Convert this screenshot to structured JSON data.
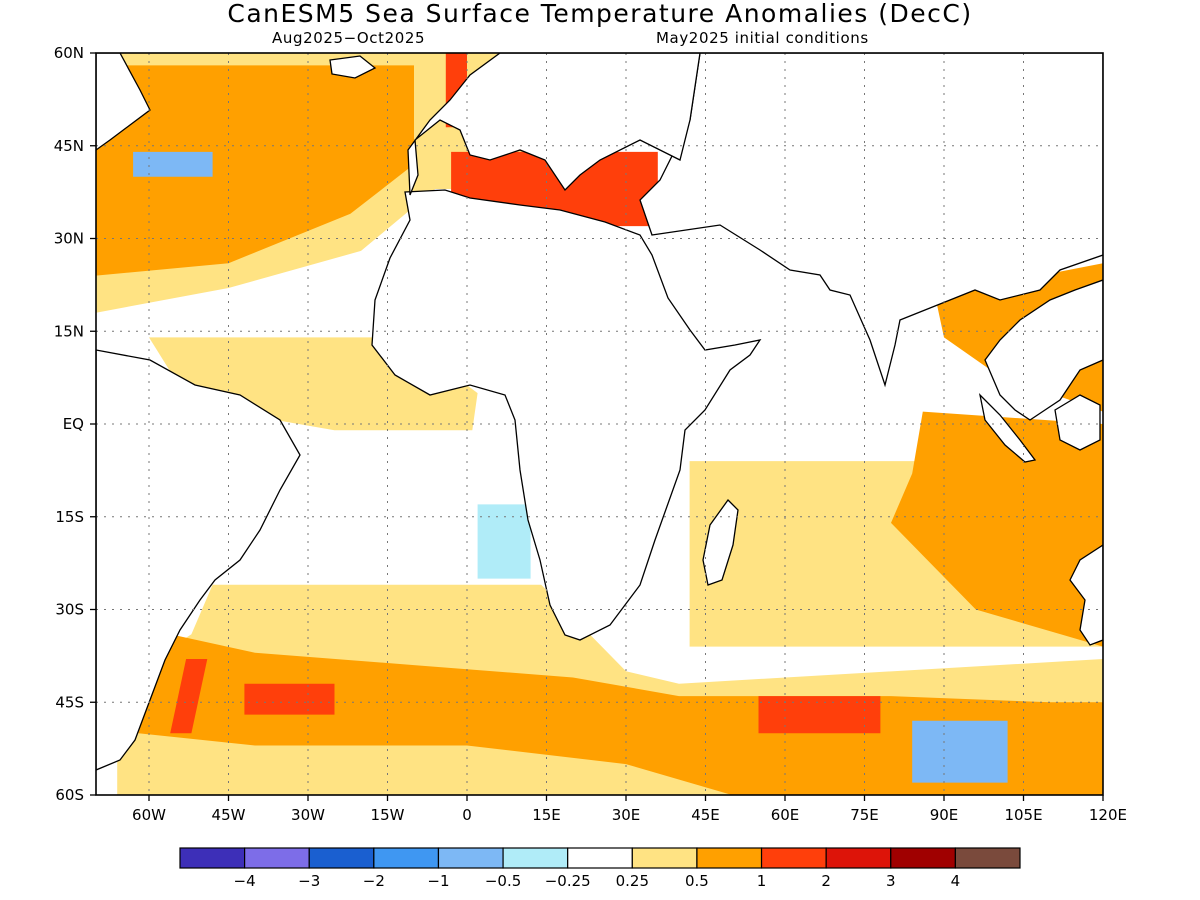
{
  "title": "CanESM5 Sea Surface Temperature Anomalies (DecC)",
  "valid_period": "Aug2025−Oct2025",
  "initial_conditions": "May2025 initial conditions",
  "map": {
    "region": "Atlantic / Indian Ocean",
    "lon_range": [
      -70,
      120
    ],
    "lat_range": [
      -60,
      60
    ],
    "lat_ticks": [
      {
        "value": 60,
        "label": "60N"
      },
      {
        "value": 45,
        "label": "45N"
      },
      {
        "value": 30,
        "label": "30N"
      },
      {
        "value": 15,
        "label": "15N"
      },
      {
        "value": 0,
        "label": "EQ"
      },
      {
        "value": -15,
        "label": "15S"
      },
      {
        "value": -30,
        "label": "30S"
      },
      {
        "value": -45,
        "label": "45S"
      },
      {
        "value": -60,
        "label": "60S"
      }
    ],
    "lon_ticks": [
      {
        "value": -60,
        "label": "60W"
      },
      {
        "value": -45,
        "label": "45W"
      },
      {
        "value": -30,
        "label": "30W"
      },
      {
        "value": -15,
        "label": "15W"
      },
      {
        "value": 0,
        "label": "0"
      },
      {
        "value": 15,
        "label": "15E"
      },
      {
        "value": 30,
        "label": "30E"
      },
      {
        "value": 45,
        "label": "45E"
      },
      {
        "value": 60,
        "label": "60E"
      },
      {
        "value": 75,
        "label": "75E"
      },
      {
        "value": 90,
        "label": "90E"
      },
      {
        "value": 105,
        "label": "105E"
      },
      {
        "value": 120,
        "label": "120E"
      }
    ],
    "grid": true
  },
  "colorbar": {
    "colors": [
      "#3d2fb8",
      "#7d6de8",
      "#1a5fd0",
      "#3f97f2",
      "#7db8f5",
      "#b0ecf8",
      "#ffffff",
      "#ffe383",
      "#ffa000",
      "#ff3f0b",
      "#dd1409",
      "#a00000",
      "#7a4a3c"
    ],
    "labels": [
      "−4",
      "−3",
      "−2",
      "−1",
      "−0.5",
      "−0.25",
      "0.25",
      "0.5",
      "1",
      "2",
      "3",
      "4"
    ]
  },
  "anomaly_fields": [
    {
      "level": "0.5",
      "color": "#ffe383",
      "lonlat": [
        [
          -70,
          60
        ],
        [
          20,
          60
        ],
        [
          20,
          38
        ],
        [
          -6,
          38
        ],
        [
          -20,
          28
        ],
        [
          -45,
          22
        ],
        [
          -70,
          18
        ]
      ]
    },
    {
      "level": "1",
      "color": "#ffa000",
      "lonlat": [
        [
          -70,
          58
        ],
        [
          -10,
          58
        ],
        [
          -10,
          42
        ],
        [
          -22,
          34
        ],
        [
          -45,
          26
        ],
        [
          -70,
          24
        ]
      ]
    },
    {
      "level": "2",
      "color": "#ff3f0b",
      "lonlat": [
        [
          -4,
          60
        ],
        [
          0,
          60
        ],
        [
          0,
          48
        ],
        [
          -4,
          48
        ]
      ]
    },
    {
      "level": "0.5",
      "color": "#ffe383",
      "lonlat": [
        [
          -60,
          14
        ],
        [
          -12,
          14
        ],
        [
          2,
          5
        ],
        [
          1,
          -1
        ],
        [
          -25,
          -1
        ],
        [
          -52,
          3
        ]
      ]
    },
    {
      "level": "0.5",
      "color": "#ffe383",
      "lonlat": [
        [
          -48,
          -26
        ],
        [
          14,
          -26
        ],
        [
          30,
          -40
        ],
        [
          40,
          -42
        ],
        [
          120,
          -38
        ],
        [
          120,
          -60
        ],
        [
          -66,
          -60
        ],
        [
          -66,
          -42
        ],
        [
          -52,
          -34
        ]
      ]
    },
    {
      "level": "1",
      "color": "#ffa000",
      "lonlat": [
        [
          -56,
          -34
        ],
        [
          -40,
          -37
        ],
        [
          -10,
          -39
        ],
        [
          20,
          -41
        ],
        [
          40,
          -44
        ],
        [
          80,
          -44
        ],
        [
          110,
          -45
        ],
        [
          120,
          -45
        ],
        [
          120,
          -60
        ],
        [
          50,
          -60
        ],
        [
          30,
          -55
        ],
        [
          0,
          -52
        ],
        [
          -40,
          -52
        ],
        [
          -62,
          -50
        ]
      ]
    },
    {
      "level": "2",
      "color": "#ff3f0b",
      "lonlat": [
        [
          -53,
          -38
        ],
        [
          -49,
          -38
        ],
        [
          -52,
          -50
        ],
        [
          -56,
          -50
        ]
      ]
    },
    {
      "level": "2",
      "color": "#ff3f0b",
      "lonlat": [
        [
          -42,
          -42
        ],
        [
          -25,
          -42
        ],
        [
          -25,
          -47
        ],
        [
          -42,
          -47
        ]
      ]
    },
    {
      "level": "2",
      "color": "#ff3f0b",
      "lonlat": [
        [
          55,
          -44
        ],
        [
          78,
          -44
        ],
        [
          78,
          -50
        ],
        [
          55,
          -50
        ]
      ]
    },
    {
      "level": "0.5",
      "color": "#ffe383",
      "lonlat": [
        [
          42,
          -6
        ],
        [
          120,
          -6
        ],
        [
          120,
          -36
        ],
        [
          42,
          -36
        ]
      ]
    },
    {
      "level": "1",
      "color": "#ffa000",
      "lonlat": [
        [
          86,
          2
        ],
        [
          120,
          0
        ],
        [
          120,
          -36
        ],
        [
          96,
          -30
        ],
        [
          80,
          -16
        ],
        [
          84,
          -8
        ]
      ]
    },
    {
      "level": "1",
      "color": "#ffa000",
      "lonlat": [
        [
          88,
          22
        ],
        [
          100,
          22
        ],
        [
          108,
          24
        ],
        [
          120,
          26
        ],
        [
          120,
          2
        ],
        [
          100,
          8
        ],
        [
          90,
          14
        ]
      ]
    },
    {
      "level": "-0.5",
      "color": "#b0ecf8",
      "lonlat": [
        [
          2,
          -13
        ],
        [
          12,
          -13
        ],
        [
          12,
          -25
        ],
        [
          2,
          -25
        ]
      ]
    },
    {
      "level": "-1",
      "color": "#7db8f5",
      "lonlat": [
        [
          -63,
          44
        ],
        [
          -48,
          44
        ],
        [
          -48,
          40
        ],
        [
          -63,
          40
        ]
      ]
    },
    {
      "level": "-1",
      "color": "#7db8f5",
      "lonlat": [
        [
          84,
          -48
        ],
        [
          102,
          -48
        ],
        [
          102,
          -58
        ],
        [
          84,
          -58
        ]
      ]
    },
    {
      "level": "2",
      "color": "#ff3f0b",
      "lonlat": [
        [
          -3,
          44
        ],
        [
          36,
          44
        ],
        [
          36,
          32
        ],
        [
          -3,
          32
        ]
      ]
    }
  ]
}
